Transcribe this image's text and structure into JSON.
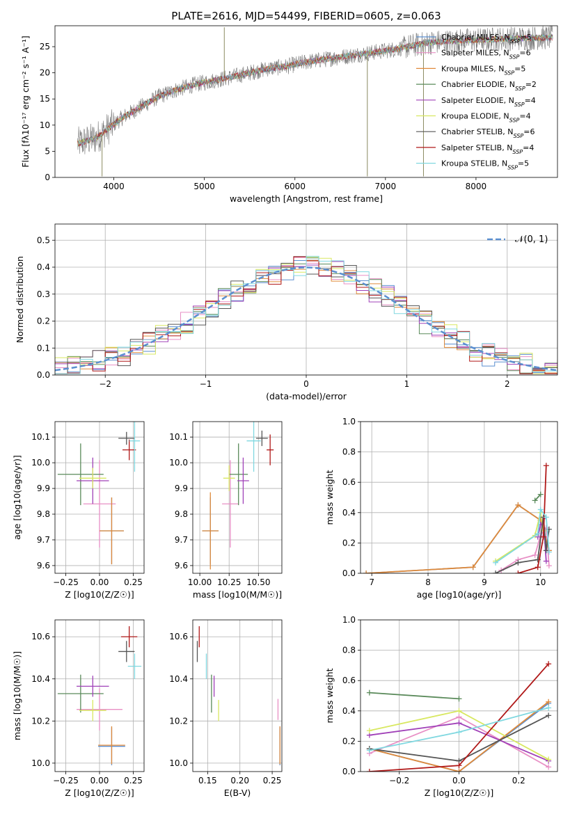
{
  "figure_title": "PLATE=2616, MJD=54499, FIBERID=0605, z=0.063",
  "colors": {
    "Chabrier MILES": "#5b8fd0",
    "Salpeter MILES": "#e88fc5",
    "Kroupa MILES": "#e08a3a",
    "Chabrier ELODIE": "#5a8a5a",
    "Salpeter ELODIE": "#a040b8",
    "Kroupa ELODIE": "#d8e860",
    "Chabrier STELIB": "#555555",
    "Salpeter STELIB": "#b01818",
    "Kroupa STELIB": "#80d8e0"
  },
  "models": [
    {
      "key": "Chabrier MILES",
      "label": "Chabrier MILES, N",
      "nssp": "5"
    },
    {
      "key": "Salpeter MILES",
      "label": "Salpeter MILES, N",
      "nssp": "6"
    },
    {
      "key": "Kroupa MILES",
      "label": "Kroupa MILES, N",
      "nssp": "5"
    },
    {
      "key": "Chabrier ELODIE",
      "label": "Chabrier ELODIE, N",
      "nssp": "2"
    },
    {
      "key": "Salpeter ELODIE",
      "label": "Salpeter ELODIE, N",
      "nssp": "4"
    },
    {
      "key": "Kroupa ELODIE",
      "label": "Kroupa ELODIE, N",
      "nssp": "4"
    },
    {
      "key": "Chabrier STELIB",
      "label": "Chabrier STELIB, N",
      "nssp": "6"
    },
    {
      "key": "Salpeter STELIB",
      "label": "Salpeter STELIB, N",
      "nssp": "4"
    },
    {
      "key": "Kroupa STELIB",
      "label": "Kroupa STELIB, N",
      "nssp": "5"
    }
  ],
  "chart_data": [
    {
      "id": "spectrum",
      "type": "line",
      "title": "PLATE=2616, MJD=54499, FIBERID=0605, z=0.063",
      "xlabel": "wavelength [Angstrom, rest frame]",
      "ylabel": "Flux [fλ10⁻¹⁷ erg cm⁻² s⁻¹ A⁻¹]",
      "xlim": [
        3350,
        8900
      ],
      "ylim": [
        0,
        29
      ],
      "xticks": [
        4000,
        5000,
        6000,
        7000,
        8000
      ],
      "yticks": [
        0,
        5,
        10,
        15,
        20,
        25
      ],
      "legend_position": "right",
      "continuum": {
        "x": [
          3600,
          3800,
          3950,
          4100,
          4300,
          4500,
          4700,
          4900,
          5100,
          5300,
          5500,
          5700,
          5900,
          6100,
          6300,
          6500,
          6700,
          6900,
          7100,
          7300,
          7500,
          7700,
          7900,
          8100,
          8300,
          8500,
          8700,
          8850
        ],
        "y": [
          6.5,
          7.5,
          9.5,
          11.5,
          13.5,
          15.5,
          16.8,
          17.8,
          18.5,
          19.2,
          20.0,
          20.8,
          21.2,
          22.0,
          22.5,
          23.0,
          23.5,
          24.0,
          24.5,
          25.2,
          25.8,
          26.0,
          26.2,
          26.3,
          26.5,
          26.6,
          26.7,
          26.8
        ]
      },
      "observed_spikes": [
        {
          "x": 5220,
          "y": 28.7
        },
        {
          "x": 6800,
          "y": 0.2
        },
        {
          "x": 7420,
          "y": 0.2
        },
        {
          "x": 3870,
          "y": 0.2
        }
      ]
    },
    {
      "id": "residuals",
      "type": "histogram",
      "xlabel": "(data-model)/error",
      "ylabel": "Normed distribution",
      "xlim": [
        -2.5,
        2.5
      ],
      "ylim": [
        0,
        0.56
      ],
      "xticks": [
        -2,
        -1,
        0,
        1,
        2
      ],
      "yticks": [
        0.0,
        0.1,
        0.2,
        0.3,
        0.4,
        0.5
      ],
      "bin_width": 0.125,
      "grid": true,
      "reference": {
        "name": "𝒩(0, 1)",
        "mean": 0,
        "sigma": 1
      },
      "legend_position": "top-right"
    },
    {
      "id": "age-vs-z",
      "type": "errorbar",
      "xlabel": "Z [log10(Z/Z☉)]",
      "ylabel": "age [log10(age/yr)]",
      "xlim": [
        -0.33,
        0.33
      ],
      "ylim": [
        9.57,
        10.16
      ],
      "xticks": [
        -0.25,
        0.0,
        0.25
      ],
      "yticks": [
        9.6,
        9.7,
        9.8,
        9.9,
        10.0,
        10.1
      ],
      "points": [
        {
          "model": "Chabrier MILES",
          "x": 0.09,
          "xerr": 0.09,
          "y": 9.735,
          "yerr": 0.13
        },
        {
          "model": "Salpeter MILES",
          "x": 0.0,
          "xerr": 0.12,
          "y": 9.84,
          "yerr": 0.17
        },
        {
          "model": "Kroupa MILES",
          "x": 0.09,
          "xerr": 0.09,
          "y": 9.735,
          "yerr": 0.13
        },
        {
          "model": "Chabrier ELODIE",
          "x": -0.14,
          "xerr": 0.17,
          "y": 9.955,
          "yerr": 0.12
        },
        {
          "model": "Salpeter ELODIE",
          "x": -0.05,
          "xerr": 0.12,
          "y": 9.93,
          "yerr": 0.09
        },
        {
          "model": "Kroupa ELODIE",
          "x": -0.05,
          "xerr": 0.1,
          "y": 9.94,
          "yerr": 0.04
        },
        {
          "model": "Chabrier STELIB",
          "x": 0.2,
          "xerr": 0.06,
          "y": 10.095,
          "yerr": 0.025
        },
        {
          "model": "Salpeter STELIB",
          "x": 0.22,
          "xerr": 0.05,
          "y": 10.05,
          "yerr": 0.04
        },
        {
          "model": "Kroupa STELIB",
          "x": 0.26,
          "xerr": 0.04,
          "y": 10.085,
          "yerr": 0.12
        }
      ]
    },
    {
      "id": "age-vs-mass",
      "type": "errorbar",
      "xlabel": "mass [log10(M/M☉)]",
      "ylabel": "",
      "xlim": [
        9.94,
        10.7
      ],
      "ylim": [
        9.57,
        10.16
      ],
      "xticks": [
        10.0,
        10.25,
        10.5
      ],
      "yticks": [
        9.6,
        9.7,
        9.8,
        9.9,
        10.0,
        10.1
      ],
      "points": [
        {
          "model": "Chabrier MILES",
          "x": 10.09,
          "xerr": 0.07,
          "y": 9.735,
          "yerr": 0.13
        },
        {
          "model": "Salpeter MILES",
          "x": 10.26,
          "xerr": 0.07,
          "y": 9.84,
          "yerr": 0.17
        },
        {
          "model": "Kroupa MILES",
          "x": 10.09,
          "xerr": 0.07,
          "y": 9.735,
          "yerr": 0.15
        },
        {
          "model": "Chabrier ELODIE",
          "x": 10.33,
          "xerr": 0.08,
          "y": 9.955,
          "yerr": 0.12
        },
        {
          "model": "Salpeter ELODIE",
          "x": 10.37,
          "xerr": 0.05,
          "y": 9.93,
          "yerr": 0.09
        },
        {
          "model": "Kroupa ELODIE",
          "x": 10.25,
          "xerr": 0.05,
          "y": 9.94,
          "yerr": 0.05
        },
        {
          "model": "Chabrier STELIB",
          "x": 10.53,
          "xerr": 0.05,
          "y": 10.095,
          "yerr": 0.03
        },
        {
          "model": "Salpeter STELIB",
          "x": 10.6,
          "xerr": 0.03,
          "y": 10.05,
          "yerr": 0.06
        },
        {
          "model": "Kroupa STELIB",
          "x": 10.46,
          "xerr": 0.06,
          "y": 10.085,
          "yerr": 0.12
        }
      ]
    },
    {
      "id": "weight-vs-age",
      "type": "line",
      "xlabel": "age [log10(age/yr)]",
      "ylabel": "mass weight",
      "xlim": [
        6.8,
        10.3
      ],
      "ylim": [
        0,
        1.0
      ],
      "xticks": [
        7,
        8,
        9,
        10
      ],
      "yticks": [
        0.0,
        0.2,
        0.4,
        0.6,
        0.8,
        1.0
      ],
      "grid": true,
      "series": [
        {
          "model": "Chabrier MILES",
          "x": [
            6.9,
            8.8,
            9.6,
            10.0,
            10.15
          ],
          "y": [
            0.0,
            0.04,
            0.45,
            0.35,
            0.15
          ]
        },
        {
          "model": "Salpeter MILES",
          "x": [
            9.3,
            9.6,
            9.9,
            10.0,
            10.1,
            10.15
          ],
          "y": [
            0.02,
            0.09,
            0.12,
            0.25,
            0.3,
            0.05
          ]
        },
        {
          "model": "Kroupa MILES",
          "x": [
            6.9,
            8.8,
            9.6,
            10.0,
            10.15
          ],
          "y": [
            0.0,
            0.04,
            0.45,
            0.35,
            0.15
          ]
        },
        {
          "model": "Chabrier ELODIE",
          "x": [
            9.9,
            10.0
          ],
          "y": [
            0.48,
            0.52
          ]
        },
        {
          "model": "Salpeter ELODIE",
          "x": [
            9.95,
            10.0,
            10.05,
            10.1
          ],
          "y": [
            0.24,
            0.32,
            0.36,
            0.08
          ]
        },
        {
          "model": "Kroupa ELODIE",
          "x": [
            9.2,
            9.9,
            10.0,
            10.05
          ],
          "y": [
            0.08,
            0.25,
            0.4,
            0.28
          ]
        },
        {
          "model": "Chabrier STELIB",
          "x": [
            9.2,
            9.6,
            9.95,
            10.05,
            10.1,
            10.15
          ],
          "y": [
            0.0,
            0.07,
            0.09,
            0.37,
            0.15,
            0.29
          ]
        },
        {
          "model": "Salpeter STELIB",
          "x": [
            9.6,
            9.95,
            10.05,
            10.1
          ],
          "y": [
            0.0,
            0.04,
            0.24,
            0.71
          ]
        },
        {
          "model": "Kroupa STELIB",
          "x": [
            9.2,
            9.95,
            10.0,
            10.1,
            10.15
          ],
          "y": [
            0.07,
            0.26,
            0.42,
            0.37,
            0.14
          ]
        }
      ]
    },
    {
      "id": "mass-vs-z",
      "type": "errorbar",
      "xlabel": "Z [log10(Z/Z☉)]",
      "ylabel": "mass [log10(M/M☉)]",
      "xlim": [
        -0.33,
        0.33
      ],
      "ylim": [
        9.96,
        10.68
      ],
      "xticks": [
        -0.25,
        0.0,
        0.25
      ],
      "yticks": [
        10.0,
        10.2,
        10.4,
        10.6
      ],
      "points": [
        {
          "model": "Chabrier MILES",
          "x": 0.09,
          "xerr": 0.1,
          "y": 10.08,
          "yerr": 0.09
        },
        {
          "model": "Salpeter MILES",
          "x": 0.0,
          "xerr": 0.17,
          "y": 10.255,
          "yerr": 0.1
        },
        {
          "model": "Kroupa MILES",
          "x": 0.09,
          "xerr": 0.1,
          "y": 10.085,
          "yerr": 0.09
        },
        {
          "model": "Chabrier ELODIE",
          "x": -0.14,
          "xerr": 0.17,
          "y": 10.33,
          "yerr": 0.09
        },
        {
          "model": "Salpeter ELODIE",
          "x": -0.05,
          "xerr": 0.12,
          "y": 10.365,
          "yerr": 0.05
        },
        {
          "model": "Kroupa ELODIE",
          "x": -0.05,
          "xerr": 0.1,
          "y": 10.25,
          "yerr": 0.05
        },
        {
          "model": "Chabrier STELIB",
          "x": 0.2,
          "xerr": 0.06,
          "y": 10.53,
          "yerr": 0.05
        },
        {
          "model": "Salpeter STELIB",
          "x": 0.22,
          "xerr": 0.06,
          "y": 10.6,
          "yerr": 0.05
        },
        {
          "model": "Kroupa STELIB",
          "x": 0.26,
          "xerr": 0.05,
          "y": 10.46,
          "yerr": 0.06
        }
      ]
    },
    {
      "id": "mass-vs-ebv",
      "type": "errorbar",
      "xlabel": "E(B-V)",
      "ylabel": "",
      "xlim": [
        0.127,
        0.265
      ],
      "ylim": [
        9.96,
        10.68
      ],
      "xticks": [
        0.15,
        0.2,
        0.25
      ],
      "yticks": [
        10.0,
        10.2,
        10.4,
        10.6
      ],
      "points": [
        {
          "model": "Chabrier MILES",
          "x": 0.262,
          "xerr": 0,
          "y": 10.08,
          "yerr": 0.09
        },
        {
          "model": "Salpeter MILES",
          "x": 0.259,
          "xerr": 0,
          "y": 10.255,
          "yerr": 0.05
        },
        {
          "model": "Kroupa MILES",
          "x": 0.262,
          "xerr": 0,
          "y": 10.085,
          "yerr": 0.09
        },
        {
          "model": "Chabrier ELODIE",
          "x": 0.156,
          "xerr": 0,
          "y": 10.33,
          "yerr": 0.09
        },
        {
          "model": "Salpeter ELODIE",
          "x": 0.16,
          "xerr": 0,
          "y": 10.365,
          "yerr": 0.05
        },
        {
          "model": "Kroupa ELODIE",
          "x": 0.167,
          "xerr": 0,
          "y": 10.25,
          "yerr": 0.05
        },
        {
          "model": "Chabrier STELIB",
          "x": 0.134,
          "xerr": 0,
          "y": 10.53,
          "yerr": 0.05
        },
        {
          "model": "Salpeter STELIB",
          "x": 0.137,
          "xerr": 0,
          "y": 10.6,
          "yerr": 0.05
        },
        {
          "model": "Kroupa STELIB",
          "x": 0.148,
          "xerr": 0,
          "y": 10.46,
          "yerr": 0.06
        }
      ]
    },
    {
      "id": "weight-vs-z",
      "type": "line",
      "xlabel": "Z [log10(Z/Z☉)]",
      "ylabel": "mass weight",
      "xlim": [
        -0.33,
        0.33
      ],
      "ylim": [
        0,
        1.0
      ],
      "xticks": [
        -0.2,
        0.0,
        0.2
      ],
      "yticks": [
        0.0,
        0.2,
        0.4,
        0.6,
        0.8,
        1.0
      ],
      "grid": true,
      "series": [
        {
          "model": "Chabrier MILES",
          "x": [
            -0.3,
            0.0,
            0.3
          ],
          "y": [
            0.15,
            0.0,
            0.45
          ]
        },
        {
          "model": "Salpeter MILES",
          "x": [
            -0.3,
            0.0,
            0.3
          ],
          "y": [
            0.12,
            0.36,
            0.03
          ]
        },
        {
          "model": "Kroupa MILES",
          "x": [
            -0.3,
            0.0,
            0.3
          ],
          "y": [
            0.15,
            0.0,
            0.46
          ]
        },
        {
          "model": "Chabrier ELODIE",
          "x": [
            -0.3,
            0.0
          ],
          "y": [
            0.52,
            0.48
          ]
        },
        {
          "model": "Salpeter ELODIE",
          "x": [
            -0.3,
            0.0,
            0.3
          ],
          "y": [
            0.24,
            0.32,
            0.07
          ]
        },
        {
          "model": "Kroupa ELODIE",
          "x": [
            -0.3,
            0.0,
            0.3
          ],
          "y": [
            0.27,
            0.4,
            0.08
          ]
        },
        {
          "model": "Chabrier STELIB",
          "x": [
            -0.3,
            0.0,
            0.3
          ],
          "y": [
            0.15,
            0.07,
            0.37
          ]
        },
        {
          "model": "Salpeter STELIB",
          "x": [
            -0.3,
            0.0,
            0.3
          ],
          "y": [
            0.0,
            0.04,
            0.71
          ]
        },
        {
          "model": "Kroupa STELIB",
          "x": [
            -0.3,
            0.0,
            0.3
          ],
          "y": [
            0.14,
            0.26,
            0.42
          ]
        }
      ]
    }
  ]
}
